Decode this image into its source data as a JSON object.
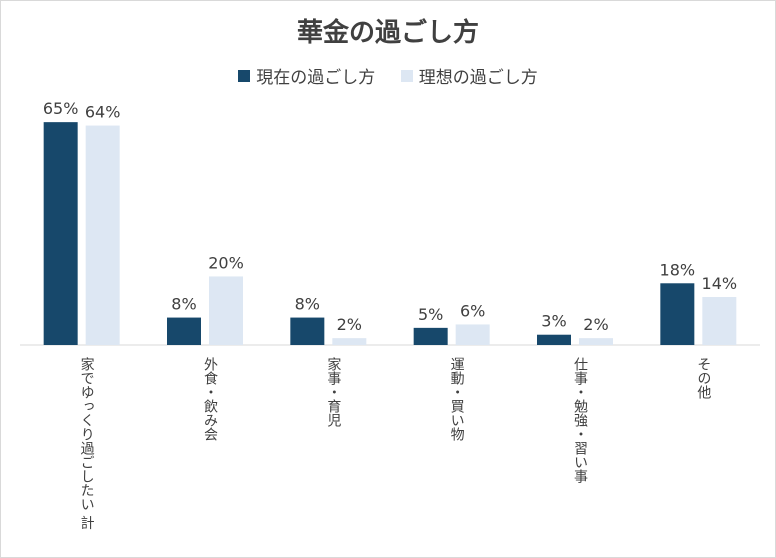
{
  "chart_data": {
    "type": "bar",
    "title": "華金の過ごし方",
    "categories": [
      "家でゆっくり過ごしたい 計",
      "外食・飲み会",
      "家事・育児",
      "運動・買い物",
      "仕事・勉強・習い事",
      "その他"
    ],
    "series": [
      {
        "name": "現在の過ごし方",
        "color": "#17486b",
        "values": [
          65,
          8,
          8,
          5,
          3,
          18
        ]
      },
      {
        "name": "理想の過ごし方",
        "color": "#dde7f3",
        "values": [
          64,
          20,
          2,
          6,
          2,
          14
        ]
      }
    ],
    "value_suffix": "%",
    "ylim": [
      0,
      70
    ],
    "grid": false,
    "legend_position": "top"
  }
}
